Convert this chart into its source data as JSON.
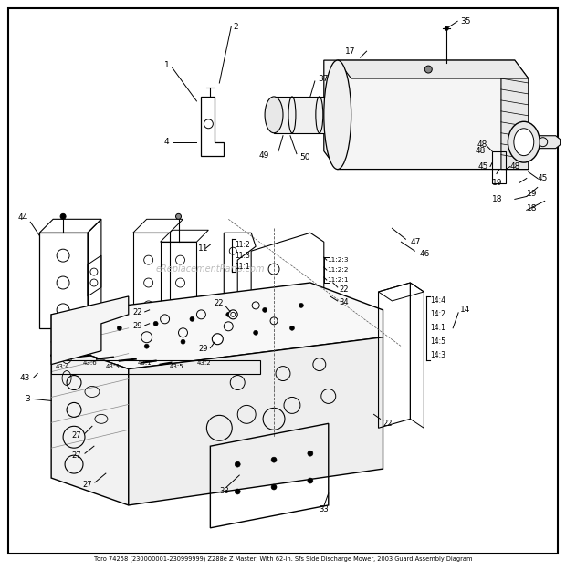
{
  "bg_color": "#ffffff",
  "border_color": "#000000",
  "watermark": "eReplacementParts.com",
  "title_line1": "Toro 74258 (230000001-230999999) Z288e Z Master, With 62-in. Sfs Side Discharge Mower, 2003 Guard Assembly Diagram",
  "fig_width": 6.2,
  "fig_height": 6.25,
  "dpi": 100
}
